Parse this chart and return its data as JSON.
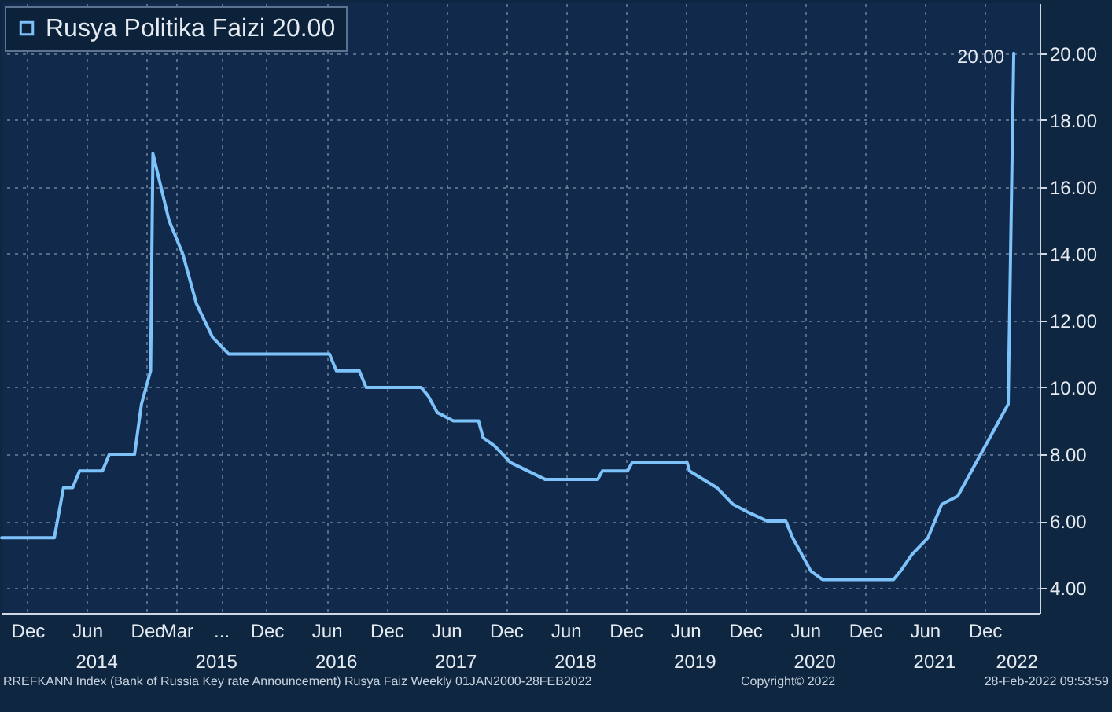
{
  "chart_data": {
    "type": "line",
    "legend": "top left",
    "grid": true,
    "xlim": [
      "2013-09-13",
      "2022-05-18"
    ],
    "xticks": [
      {
        "value": "2013-12-01",
        "label": "Dec"
      },
      {
        "value": "2014-06-01",
        "label": "Jun"
      },
      {
        "value": "2014-12-01",
        "label": "Dec"
      },
      {
        "value": "2015-03-01",
        "label": "Mar"
      },
      {
        "value": "2015-07-15",
        "label": "..."
      },
      {
        "value": "2015-12-01",
        "label": "Dec"
      },
      {
        "value": "2016-06-01",
        "label": "Jun"
      },
      {
        "value": "2016-12-01",
        "label": "Dec"
      },
      {
        "value": "2017-06-01",
        "label": "Jun"
      },
      {
        "value": "2017-12-01",
        "label": "Dec"
      },
      {
        "value": "2018-06-01",
        "label": "Jun"
      },
      {
        "value": "2018-12-01",
        "label": "Dec"
      },
      {
        "value": "2019-06-01",
        "label": "Jun"
      },
      {
        "value": "2019-12-01",
        "label": "Dec"
      },
      {
        "value": "2020-06-01",
        "label": "Jun"
      },
      {
        "value": "2020-12-01",
        "label": "Dec"
      },
      {
        "value": "2021-06-01",
        "label": "Jun"
      },
      {
        "value": "2021-12-01",
        "label": "Dec"
      }
    ],
    "x2lim": [
      "2013-09-13",
      "2022-05-18"
    ],
    "x2ticks": [
      {
        "value": "2014-07-01",
        "label": "2014"
      },
      {
        "value": "2015-07-01",
        "label": "2015"
      },
      {
        "value": "2016-07-01",
        "label": "2016"
      },
      {
        "value": "2017-07-01",
        "label": "2017"
      },
      {
        "value": "2018-07-01",
        "label": "2018"
      },
      {
        "value": "2019-07-01",
        "label": "2019"
      },
      {
        "value": "2020-07-01",
        "label": "2020"
      },
      {
        "value": "2021-07-01",
        "label": "2021"
      },
      {
        "value": "2022-03-10",
        "label": "2022"
      }
    ],
    "ylim": [
      3.25,
      21.5
    ],
    "yticks": [
      {
        "value": 4,
        "label": "4.00"
      },
      {
        "value": 6,
        "label": "6.00"
      },
      {
        "value": 8,
        "label": "8.00"
      },
      {
        "value": 10,
        "label": "10.00"
      },
      {
        "value": 12,
        "label": "12.00"
      },
      {
        "value": 14,
        "label": "14.00"
      },
      {
        "value": 16,
        "label": "16.00"
      },
      {
        "value": 18,
        "label": "18.00"
      },
      {
        "value": 20,
        "label": "20.00"
      }
    ],
    "x": [
      "2013-09-13",
      "2014-02-21",
      "2014-03-21",
      "2014-04-18",
      "2014-05-09",
      "2014-07-18",
      "2014-08-08",
      "2014-10-24",
      "2014-11-14",
      "2014-12-12",
      "2014-12-19",
      "2015-02-06",
      "2015-03-20",
      "2015-05-01",
      "2015-06-19",
      "2015-08-07",
      "2016-06-10",
      "2016-07-01",
      "2016-09-09",
      "2016-09-30",
      "2017-03-17",
      "2017-04-07",
      "2017-05-05",
      "2017-06-23",
      "2017-09-08",
      "2017-09-22",
      "2017-10-27",
      "2017-12-15",
      "2018-03-30",
      "2018-09-07",
      "2018-09-21",
      "2018-12-07",
      "2018-12-21",
      "2019-06-07",
      "2019-06-14",
      "2019-07-26",
      "2019-09-06",
      "2019-10-25",
      "2019-12-13",
      "2020-02-07",
      "2020-04-03",
      "2020-04-24",
      "2020-06-19",
      "2020-07-24",
      "2021-02-26",
      "2021-03-19",
      "2021-04-23",
      "2021-06-11",
      "2021-07-23",
      "2021-09-10",
      "2021-10-22",
      "2021-12-17",
      "2022-02-11",
      "2022-02-28"
    ],
    "series": [
      {
        "name": "Rusya Politika Faizi 20.00",
        "color": "#7ec2fa",
        "values": [
          5.5,
          5.5,
          7.0,
          7.0,
          7.5,
          7.5,
          8.0,
          8.0,
          9.5,
          10.5,
          17.0,
          15.0,
          14.0,
          12.5,
          11.5,
          11.0,
          11.0,
          10.5,
          10.5,
          10.0,
          10.0,
          9.75,
          9.25,
          9.0,
          9.0,
          8.5,
          8.25,
          7.75,
          7.25,
          7.25,
          7.5,
          7.5,
          7.75,
          7.75,
          7.5,
          7.25,
          7.0,
          6.5,
          6.25,
          6.0,
          6.0,
          5.5,
          4.5,
          4.25,
          4.25,
          4.5,
          5.0,
          5.5,
          6.5,
          6.75,
          7.5,
          8.5,
          9.5,
          20.0
        ],
        "value_labels": [
          null,
          null,
          null,
          null,
          null,
          null,
          null,
          null,
          null,
          null,
          null,
          null,
          null,
          null,
          null,
          null,
          null,
          null,
          null,
          null,
          null,
          null,
          null,
          null,
          null,
          null,
          null,
          null,
          null,
          null,
          null,
          null,
          null,
          null,
          null,
          null,
          null,
          null,
          null,
          null,
          null,
          null,
          null,
          null,
          null,
          null,
          null,
          null,
          null,
          null,
          null,
          null,
          null,
          "20.00"
        ]
      }
    ],
    "annotations": [
      "RREFKANN Index (Bank of Russia Key rate Announcement) Rusya Faiz  Weekly 01JAN2000-28FEB2022",
      "Copyright© 2022",
      "28-Feb-2022 09:53:59"
    ]
  }
}
